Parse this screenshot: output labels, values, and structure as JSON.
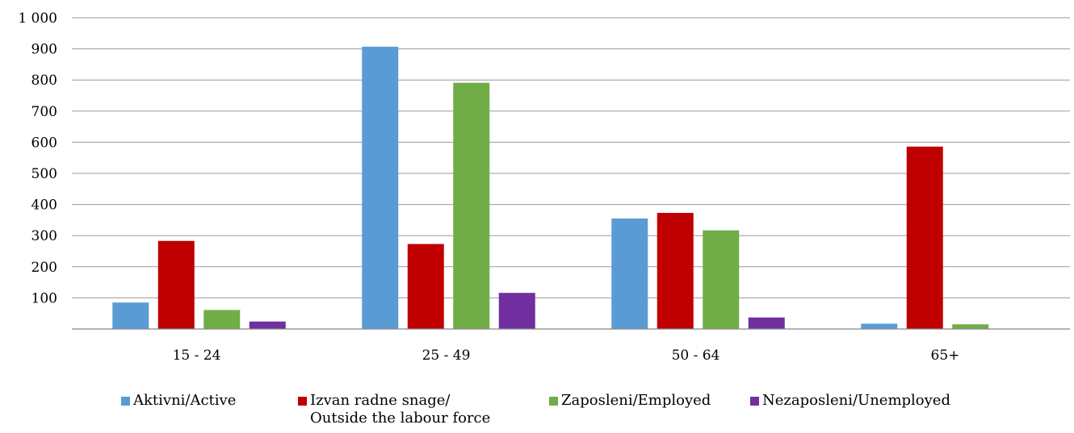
{
  "chart_data": {
    "type": "bar",
    "categories": [
      "15 - 24",
      "25 - 49",
      "50 - 64",
      "65+"
    ],
    "series": [
      {
        "name": "Aktivni/Active",
        "color": "#5B9BD5",
        "values": [
          85,
          907,
          355,
          17
        ]
      },
      {
        "name": "Izvan radne snage/\nOutside the labour force",
        "color": "#C00000",
        "values": [
          283,
          273,
          373,
          586
        ]
      },
      {
        "name": "Zaposleni/Employed",
        "color": "#70AD47",
        "values": [
          61,
          791,
          317,
          15
        ]
      },
      {
        "name": "Nezaposleni/Unemployed",
        "color": "#7030A0",
        "values": [
          24,
          116,
          37,
          0
        ]
      }
    ],
    "yticks": [
      "",
      "100",
      "200",
      "300",
      "400",
      "500",
      "600",
      "700",
      "800",
      "900",
      "1 000"
    ],
    "ylim": [
      0,
      1000
    ],
    "grid": true,
    "legend_position": "bottom",
    "title": "",
    "xlabel": "",
    "ylabel": ""
  }
}
